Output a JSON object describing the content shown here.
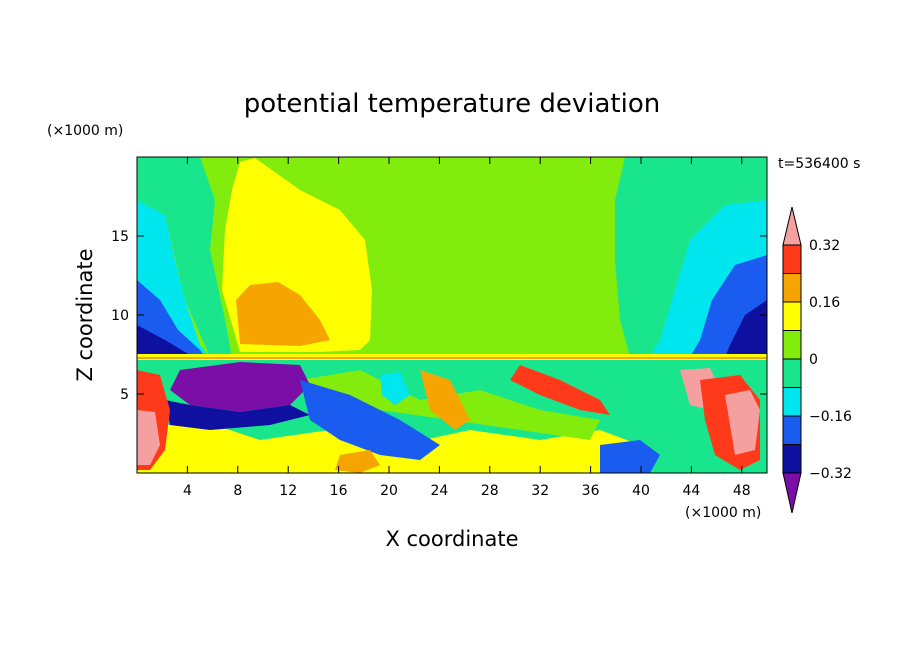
{
  "chart_data": {
    "type": "heatmap",
    "title": "potential temperature deviation",
    "xlabel": "X coordinate",
    "ylabel": "Z coordinate",
    "x_unit": "(×1000 m)",
    "y_unit": "(×1000 m)",
    "time_label": "t=536400 s",
    "xlim": [
      0,
      50
    ],
    "ylim": [
      0,
      20
    ],
    "x_ticks": [
      4,
      8,
      12,
      16,
      20,
      24,
      28,
      32,
      36,
      40,
      44,
      48
    ],
    "y_ticks": [
      5,
      10,
      15
    ],
    "colorbar": {
      "levels": [
        -0.4,
        -0.32,
        -0.24,
        -0.16,
        -0.08,
        0,
        0.08,
        0.16,
        0.24,
        0.32,
        0.4
      ],
      "tick_labels": [
        "0.32",
        "0.16",
        "0",
        "−0.16",
        "−0.32"
      ],
      "tick_values": [
        0.32,
        0.16,
        0,
        -0.16,
        -0.32
      ],
      "colors": [
        "#7a0ea6",
        "#1010a0",
        "#1a5cf0",
        "#00e6ee",
        "#19e68c",
        "#82ec0c",
        "#ffff00",
        "#f5a400",
        "#ff3a1a",
        "#f5a0a0"
      ],
      "extend": "both"
    }
  }
}
